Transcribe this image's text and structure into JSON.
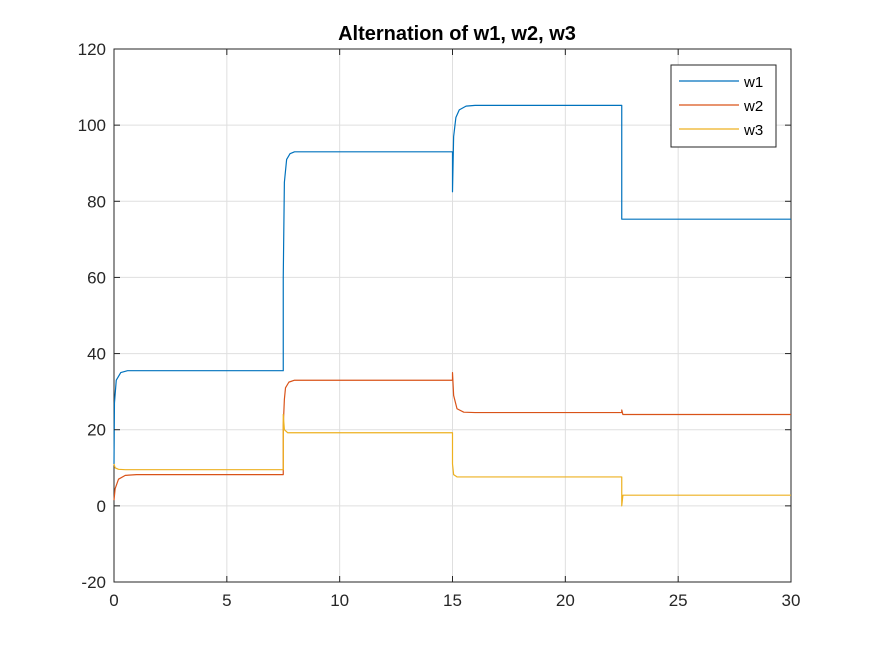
{
  "chart_data": {
    "type": "line",
    "title": "Alternation of w1, w2, w3",
    "xlabel": "",
    "ylabel": "",
    "xlim": [
      0,
      30
    ],
    "ylim": [
      -20,
      120
    ],
    "xticks": [
      0,
      5,
      10,
      15,
      20,
      25,
      30
    ],
    "yticks": [
      -20,
      0,
      20,
      40,
      60,
      80,
      100,
      120
    ],
    "xtick_labels": [
      "0",
      "5",
      "10",
      "15",
      "20",
      "25",
      "30"
    ],
    "ytick_labels": [
      "-20",
      "0",
      "20",
      "40",
      "60",
      "80",
      "100",
      "120"
    ],
    "grid": true,
    "legend_position": "top-right",
    "series": [
      {
        "name": "w1",
        "color": "#0072BD",
        "x": [
          0,
          0.02,
          0.1,
          0.3,
          0.6,
          7.5,
          7.5,
          7.55,
          7.65,
          7.8,
          8,
          15,
          15.0,
          15.05,
          15.15,
          15.3,
          15.6,
          16,
          22.5,
          22.5,
          30
        ],
        "y": [
          11,
          27,
          33,
          35,
          35.5,
          35.5,
          60,
          85,
          91,
          92.5,
          93,
          93,
          82.5,
          97,
          102,
          104,
          105,
          105.2,
          105.2,
          75.3,
          75.3
        ]
      },
      {
        "name": "w2",
        "color": "#D95319",
        "x": [
          0,
          0.05,
          0.2,
          0.5,
          1,
          7.5,
          7.5,
          7.55,
          7.6,
          7.75,
          8,
          15,
          15.0,
          15.05,
          15.2,
          15.5,
          16,
          22.5,
          22.5,
          22.55,
          30
        ],
        "y": [
          1.5,
          4.5,
          7,
          8,
          8.2,
          8.2,
          21,
          28,
          31,
          32.5,
          33,
          33,
          35,
          29,
          25.5,
          24.6,
          24.5,
          24.5,
          25.2,
          24.0,
          24.0
        ]
      },
      {
        "name": "w3",
        "color": "#EDB120",
        "x": [
          0,
          0.05,
          0.2,
          0.5,
          7.5,
          7.5,
          7.55,
          7.7,
          15,
          15.0,
          15.05,
          15.2,
          22.5,
          22.5,
          22.55,
          30
        ],
        "y": [
          11,
          10,
          9.6,
          9.5,
          9.5,
          24,
          20,
          19.2,
          19.2,
          11,
          8.2,
          7.6,
          7.6,
          0,
          2.8,
          2.8
        ]
      }
    ]
  }
}
